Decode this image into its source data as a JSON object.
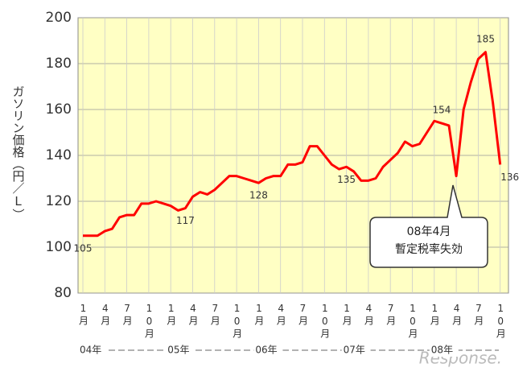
{
  "chart_data": {
    "type": "line",
    "y_label": "ガソリン価格（円／L）",
    "categories": [
      "1月",
      null,
      null,
      "4月",
      null,
      null,
      "7月",
      null,
      null,
      "10月",
      null,
      null,
      "1月",
      null,
      null,
      "4月",
      null,
      null,
      "7月",
      null,
      null,
      "10月",
      null,
      null,
      "1月",
      null,
      null,
      "4月",
      null,
      null,
      "7月",
      null,
      null,
      "10月",
      null,
      null,
      "1月",
      null,
      null,
      "4月",
      null,
      null,
      "7月",
      null,
      null,
      "10月",
      null,
      null,
      "1月",
      null,
      null,
      "4月",
      null,
      null,
      "7月",
      null,
      null,
      "10月"
    ],
    "years": [
      "04年",
      "05年",
      "06年",
      "07年",
      "08年"
    ],
    "series": [
      {
        "color": "#ff0000",
        "values": [
          105,
          105,
          105,
          107,
          108,
          113,
          114,
          114,
          119,
          119,
          120,
          119,
          118,
          116,
          117,
          122,
          124,
          123,
          125,
          128,
          131,
          131,
          130,
          129,
          128,
          130,
          131,
          131,
          136,
          136,
          137,
          144,
          144,
          140,
          136,
          134,
          135,
          133,
          129,
          129,
          130,
          135,
          138,
          141,
          146,
          144,
          145,
          150,
          155,
          154,
          153,
          131,
          160,
          172,
          182,
          185,
          163,
          136
        ],
        "value_labels": [
          "105",
          null,
          null,
          null,
          null,
          null,
          null,
          null,
          null,
          null,
          null,
          null,
          null,
          null,
          "117",
          null,
          null,
          null,
          null,
          null,
          null,
          null,
          null,
          null,
          "128",
          null,
          null,
          null,
          null,
          null,
          null,
          null,
          null,
          null,
          null,
          null,
          "135",
          null,
          null,
          null,
          null,
          null,
          null,
          null,
          null,
          null,
          null,
          null,
          null,
          "154",
          null,
          null,
          null,
          null,
          null,
          "185",
          null,
          "136"
        ]
      }
    ],
    "ylim": [
      80,
      200
    ],
    "yticks": [
      80,
      100,
      120,
      140,
      160,
      180,
      200
    ],
    "grid": true,
    "annotation": [
      "08年4月",
      "暫定税率失効"
    ],
    "watermark": "Response."
  }
}
